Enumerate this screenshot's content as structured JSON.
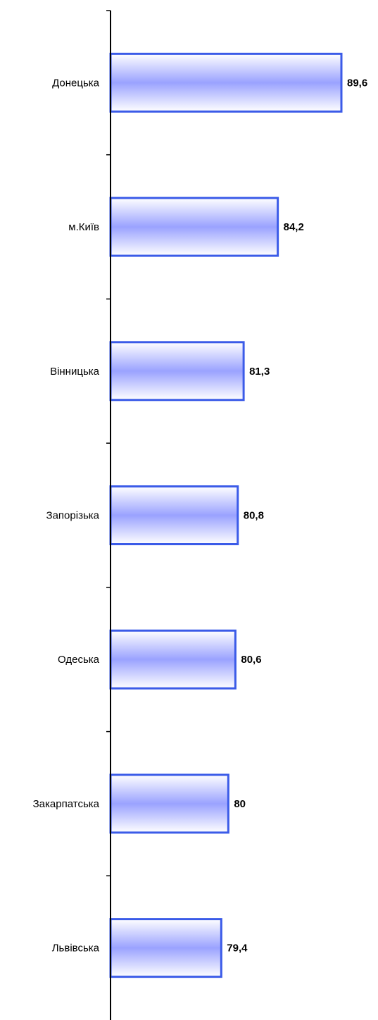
{
  "chart_data": {
    "type": "bar",
    "orientation": "horizontal",
    "categories": [
      "Донецька",
      "м.Київ",
      "Вінницька",
      "Запорізька",
      "Одеська",
      "Закарпатська",
      "Львівська"
    ],
    "values": [
      89.6,
      84.2,
      81.3,
      80.8,
      80.6,
      80,
      79.4
    ],
    "value_labels": [
      "89,6",
      "84,2",
      "81,3",
      "80,8",
      "80,6",
      "80",
      "79,4"
    ],
    "xlim": [
      70,
      90
    ],
    "grid": false,
    "colors": {
      "bar_edge": "#3B5BE8",
      "bar_fill_center": "#9AA2FF",
      "bar_fill_edge": "#FFFFFF",
      "axis": "#000000"
    }
  }
}
